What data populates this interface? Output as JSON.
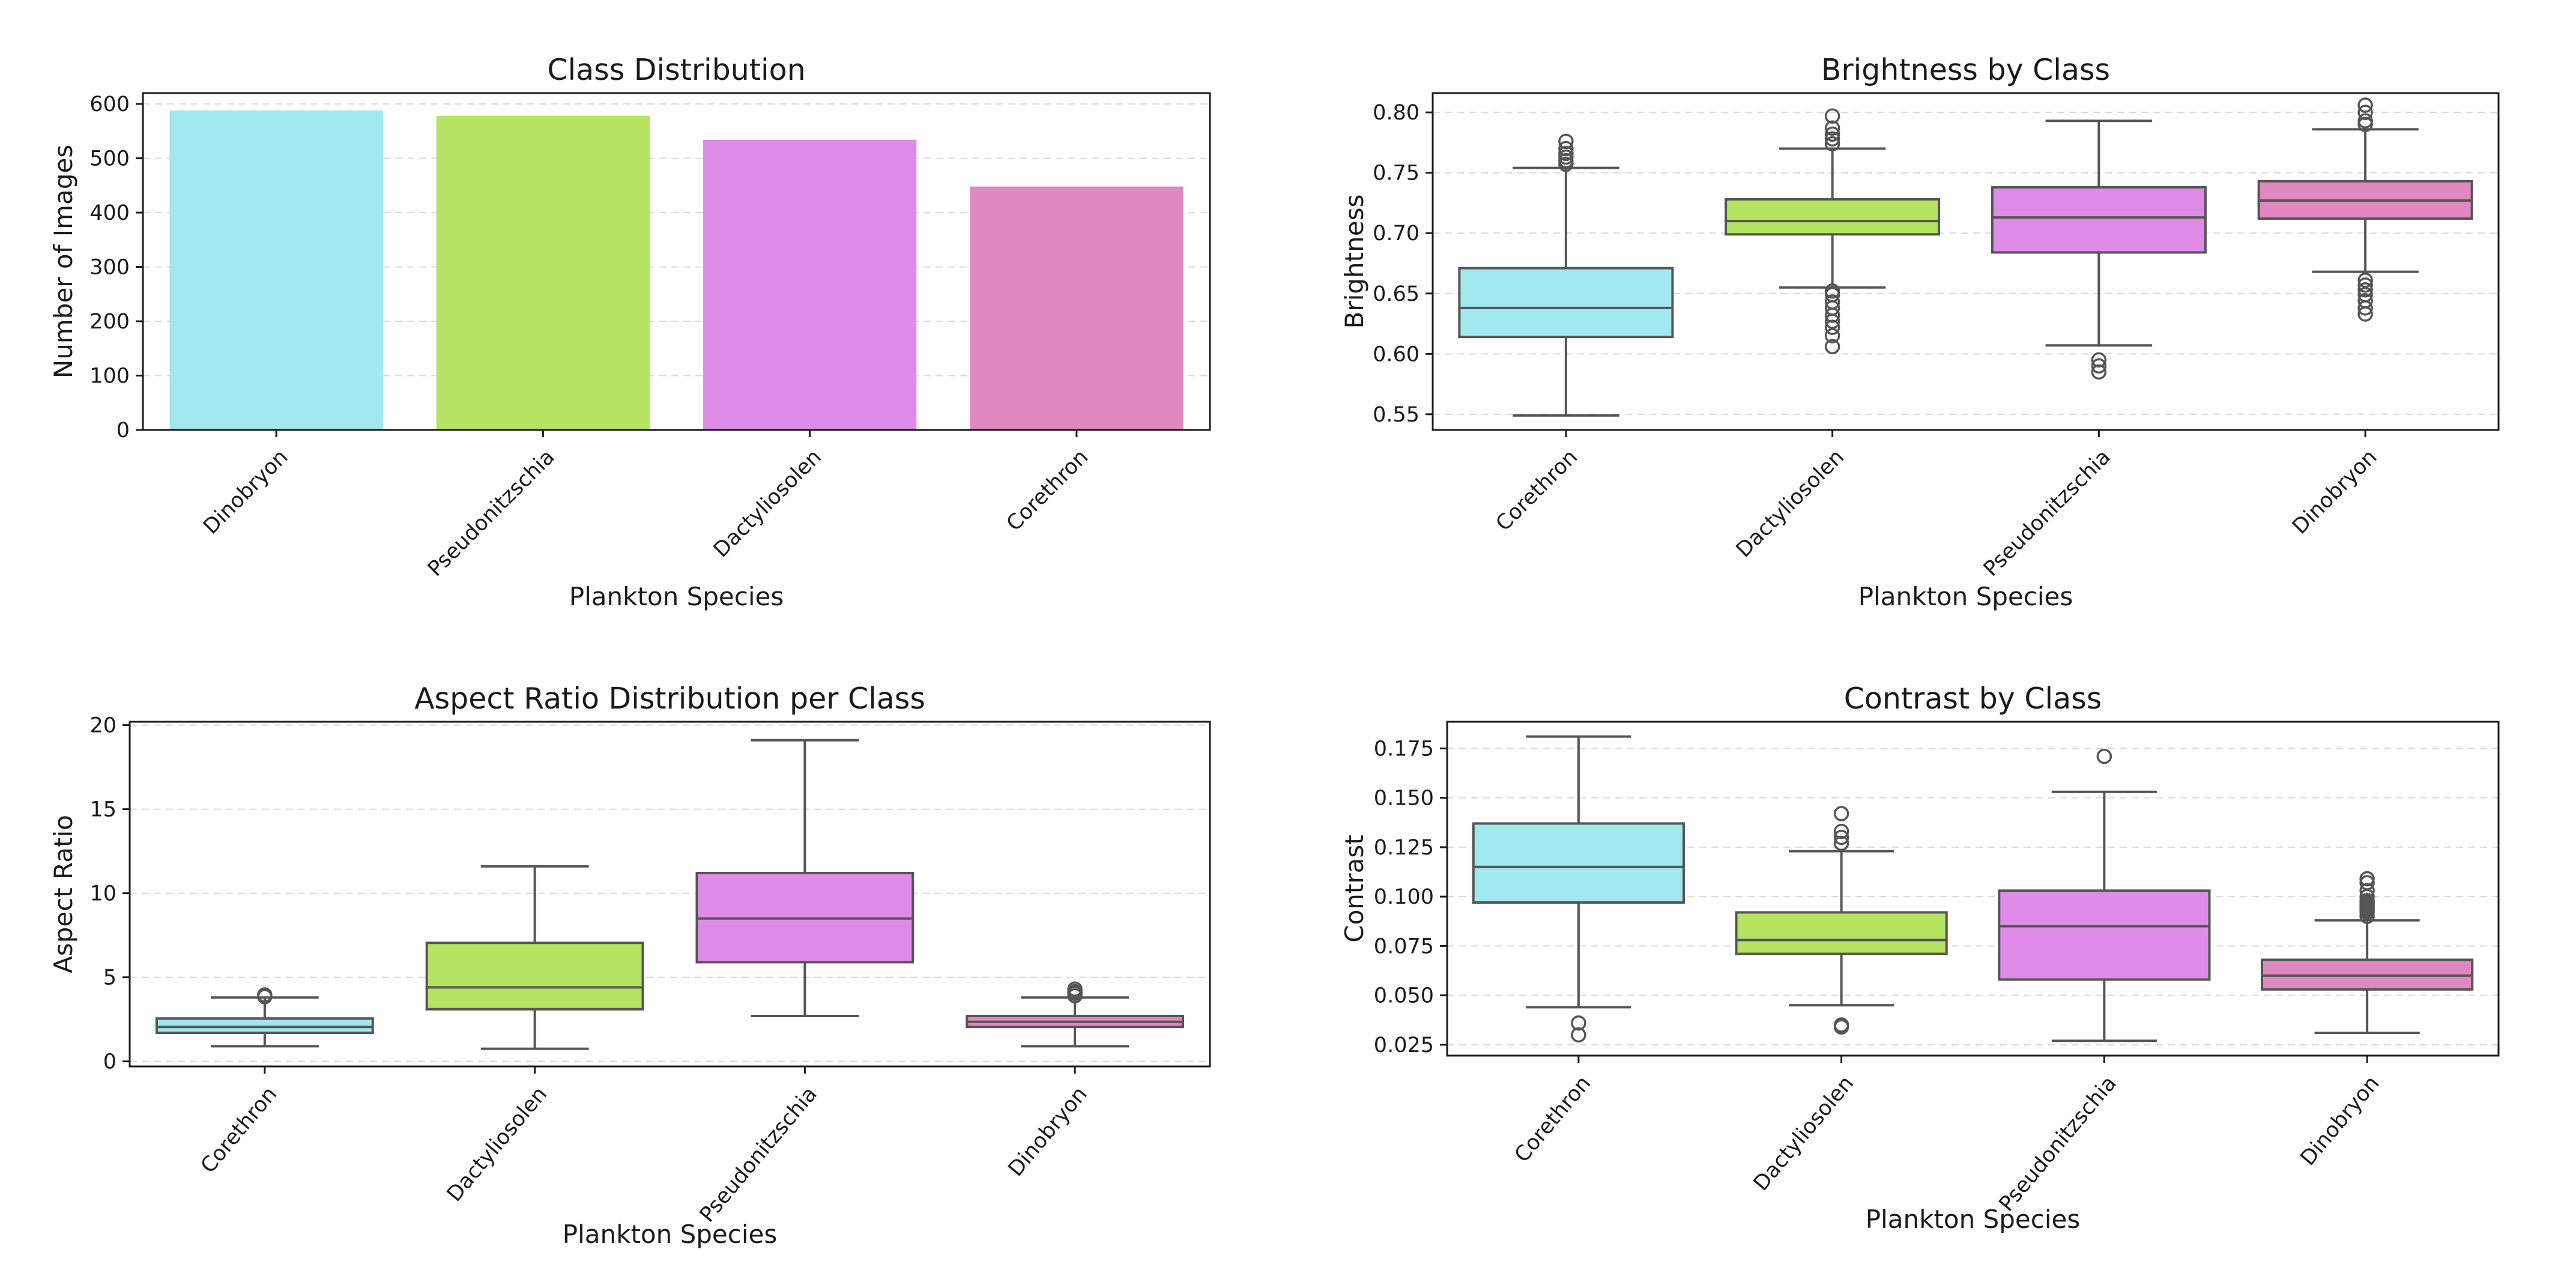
{
  "figure": {
    "palette": [
      "#a2e8ef",
      "#b4e462",
      "#df8ce9",
      "#df89c0"
    ]
  },
  "chart_data": [
    {
      "id": "class-distribution",
      "type": "bar",
      "title": "Class Distribution",
      "xlabel": "Plankton Species",
      "ylabel": "Number of Images",
      "ylim": [
        0,
        620
      ],
      "yticks": [
        0,
        100,
        200,
        300,
        400,
        500,
        600
      ],
      "ytick_labels": [
        "0",
        "100",
        "200",
        "300",
        "400",
        "500",
        "600"
      ],
      "grid": true,
      "categories": [
        "Dinobryon",
        "Pseudonitzschia",
        "Dactyliosolen",
        "Corethron"
      ],
      "colors": [
        "#a2e8ef",
        "#b4e462",
        "#df8ce9",
        "#df89c0"
      ],
      "values": [
        588,
        578,
        534,
        448
      ]
    },
    {
      "id": "brightness-by-class",
      "type": "box",
      "title": "Brightness by Class",
      "xlabel": "Plankton Species",
      "ylabel": "Brightness",
      "ylim": [
        0.537,
        0.816
      ],
      "yticks": [
        0.55,
        0.6,
        0.65,
        0.7,
        0.75,
        0.8
      ],
      "ytick_labels": [
        "0.55",
        "0.60",
        "0.65",
        "0.70",
        "0.75",
        "0.80"
      ],
      "grid": true,
      "categories": [
        "Corethron",
        "Dactyliosolen",
        "Pseudonitzschia",
        "Dinobryon"
      ],
      "colors": [
        "#a2e8ef",
        "#b4e462",
        "#df8ce9",
        "#df89c0"
      ],
      "boxes": [
        {
          "whislo": 0.549,
          "q1": 0.614,
          "med": 0.638,
          "q3": 0.671,
          "whishi": 0.754,
          "fliers": [
            0.757,
            0.76,
            0.763,
            0.766,
            0.77,
            0.776
          ]
        },
        {
          "whislo": 0.655,
          "q1": 0.699,
          "med": 0.71,
          "q3": 0.728,
          "whishi": 0.77,
          "fliers": [
            0.606,
            0.615,
            0.622,
            0.627,
            0.632,
            0.638,
            0.643,
            0.649,
            0.652,
            0.774,
            0.778,
            0.782,
            0.787,
            0.797
          ]
        },
        {
          "whislo": 0.607,
          "q1": 0.684,
          "med": 0.713,
          "q3": 0.738,
          "whishi": 0.793,
          "fliers": [
            0.585,
            0.59,
            0.595
          ]
        },
        {
          "whislo": 0.668,
          "q1": 0.712,
          "med": 0.727,
          "q3": 0.743,
          "whishi": 0.786,
          "fliers": [
            0.633,
            0.638,
            0.644,
            0.649,
            0.653,
            0.657,
            0.661,
            0.79,
            0.793,
            0.8,
            0.806
          ]
        }
      ]
    },
    {
      "id": "aspect-ratio-distribution",
      "type": "box",
      "title": "Aspect Ratio Distribution per Class",
      "xlabel": "Plankton Species",
      "ylabel": "Aspect Ratio",
      "ylim": [
        -0.3,
        20.2
      ],
      "yticks": [
        0,
        5,
        10,
        15,
        20
      ],
      "ytick_labels": [
        "0",
        "5",
        "10",
        "15",
        "20"
      ],
      "grid": true,
      "categories": [
        "Corethron",
        "Dactyliosolen",
        "Pseudonitzschia",
        "Dinobryon"
      ],
      "colors": [
        "#a2e8ef",
        "#b4e462",
        "#df8ce9",
        "#df89c0"
      ],
      "boxes": [
        {
          "whislo": 0.9,
          "q1": 1.7,
          "med": 2.05,
          "q3": 2.55,
          "whishi": 3.8,
          "fliers": [
            3.85,
            3.95
          ]
        },
        {
          "whislo": 0.75,
          "q1": 3.1,
          "med": 4.4,
          "q3": 7.05,
          "whishi": 11.6,
          "fliers": []
        },
        {
          "whislo": 2.7,
          "q1": 5.9,
          "med": 8.5,
          "q3": 11.2,
          "whishi": 19.1,
          "fliers": []
        },
        {
          "whislo": 0.9,
          "q1": 2.05,
          "med": 2.35,
          "q3": 2.7,
          "whishi": 3.8,
          "fliers": [
            3.9,
            4.05,
            4.15,
            4.3
          ]
        }
      ]
    },
    {
      "id": "contrast-by-class",
      "type": "box",
      "title": "Contrast by Class",
      "xlabel": "Plankton Species",
      "ylabel": "Contrast",
      "ylim": [
        0.0195,
        0.1885
      ],
      "yticks": [
        0.025,
        0.05,
        0.075,
        0.1,
        0.125,
        0.15,
        0.175
      ],
      "ytick_labels": [
        "0.025",
        "0.050",
        "0.075",
        "0.100",
        "0.125",
        "0.150",
        "0.175"
      ],
      "grid": true,
      "categories": [
        "Corethron",
        "Dactyliosolen",
        "Pseudonitzschia",
        "Dinobryon"
      ],
      "colors": [
        "#a2e8ef",
        "#b4e462",
        "#df8ce9",
        "#df89c0"
      ],
      "boxes": [
        {
          "whislo": 0.044,
          "q1": 0.097,
          "med": 0.115,
          "q3": 0.137,
          "whishi": 0.181,
          "fliers": [
            0.03,
            0.036
          ]
        },
        {
          "whislo": 0.045,
          "q1": 0.071,
          "med": 0.078,
          "q3": 0.092,
          "whishi": 0.123,
          "fliers": [
            0.034,
            0.035,
            0.127,
            0.13,
            0.133,
            0.142
          ]
        },
        {
          "whislo": 0.027,
          "q1": 0.058,
          "med": 0.085,
          "q3": 0.103,
          "whishi": 0.153,
          "fliers": [
            0.171
          ]
        },
        {
          "whislo": 0.031,
          "q1": 0.053,
          "med": 0.06,
          "q3": 0.068,
          "whishi": 0.088,
          "fliers": [
            0.09,
            0.092,
            0.093,
            0.094,
            0.095,
            0.096,
            0.097,
            0.098,
            0.1,
            0.103,
            0.107,
            0.109
          ]
        }
      ]
    }
  ]
}
